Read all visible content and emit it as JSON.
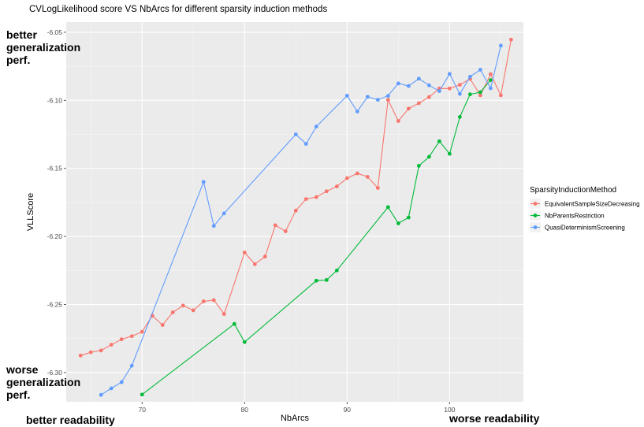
{
  "annotations": {
    "top_left": [
      "better",
      "generalization",
      "perf."
    ],
    "bottom_left": [
      "worse",
      "generalization",
      "perf."
    ],
    "bottom_readability_left": "better readability",
    "bottom_readability_right": "worse readability"
  },
  "chart_data": {
    "type": "line",
    "title": "CVLogLikelihood score VS NbArcs for different sparsity induction methods",
    "xlabel": "NbArcs",
    "ylabel": "VLLScore",
    "xlim": [
      62.6,
      107.2
    ],
    "ylim": [
      -6.3215,
      -6.0425
    ],
    "x_ticks": [
      70,
      80,
      90,
      100
    ],
    "y_ticks": [
      -6.3,
      -6.25,
      -6.2,
      -6.15,
      -6.1,
      -6.05
    ],
    "y_tick_labels": [
      "-6.30",
      "-6.25",
      "-6.20",
      "-6.15",
      "-6.10",
      "-6.05"
    ],
    "grid": true,
    "legend_position": "right",
    "legend_title": "SparsityInductionMethod",
    "series": [
      {
        "name": "EquivalentSampleSizeDecreasing",
        "color": "#F8766D",
        "x": [
          64,
          65,
          66,
          67,
          68,
          69,
          70,
          71,
          72,
          73,
          74,
          75,
          76,
          77,
          78,
          80,
          81,
          82,
          83,
          84,
          85,
          86,
          87,
          88,
          89,
          90,
          91,
          92,
          93,
          94,
          95,
          96,
          97,
          98,
          99,
          100,
          101,
          102,
          103,
          104,
          105,
          106
        ],
        "y": [
          -6.2875,
          -6.2851,
          -6.2838,
          -6.2796,
          -6.2756,
          -6.2733,
          -6.2701,
          -6.2583,
          -6.2651,
          -6.2558,
          -6.2508,
          -6.2543,
          -6.2477,
          -6.2468,
          -6.257,
          -6.2118,
          -6.2204,
          -6.2148,
          -6.1918,
          -6.1962,
          -6.181,
          -6.1725,
          -6.1711,
          -6.1668,
          -6.1633,
          -6.1572,
          -6.1537,
          -6.1562,
          -6.1644,
          -6.0997,
          -6.1152,
          -6.1061,
          -6.1021,
          -6.0976,
          -6.0913,
          -6.0913,
          -6.0886,
          -6.0843,
          -6.0963,
          -6.0808,
          -6.0963,
          -6.0554
        ]
      },
      {
        "name": "NbParentsRestriction",
        "color": "#00BA38",
        "x": [
          70,
          79,
          80,
          87,
          88,
          89,
          94,
          95,
          96,
          97,
          98,
          99,
          100,
          101,
          102,
          103,
          104
        ],
        "y": [
          -6.3162,
          -6.2643,
          -6.2776,
          -6.2325,
          -6.232,
          -6.225,
          -6.1785,
          -6.1904,
          -6.1861,
          -6.1481,
          -6.1415,
          -6.1301,
          -6.1393,
          -6.1122,
          -6.0956,
          -6.094,
          -6.0851
        ]
      },
      {
        "name": "QuasiDeterminismScreening",
        "color": "#619CFF",
        "x": [
          66,
          67,
          68,
          69,
          76,
          77,
          78,
          85,
          86,
          87,
          90,
          91,
          92,
          93,
          94,
          95,
          96,
          97,
          98,
          99,
          100,
          101,
          102,
          103,
          104,
          105
        ],
        "y": [
          -6.3164,
          -6.3116,
          -6.3071,
          -6.295,
          -6.16,
          -6.1923,
          -6.1831,
          -6.125,
          -6.132,
          -6.1193,
          -6.0966,
          -6.1082,
          -6.0974,
          -6.0996,
          -6.0967,
          -6.0876,
          -6.0895,
          -6.0841,
          -6.089,
          -6.0932,
          -6.0806,
          -6.0953,
          -6.0826,
          -6.0775,
          -6.0911,
          -6.0598
        ]
      }
    ]
  }
}
